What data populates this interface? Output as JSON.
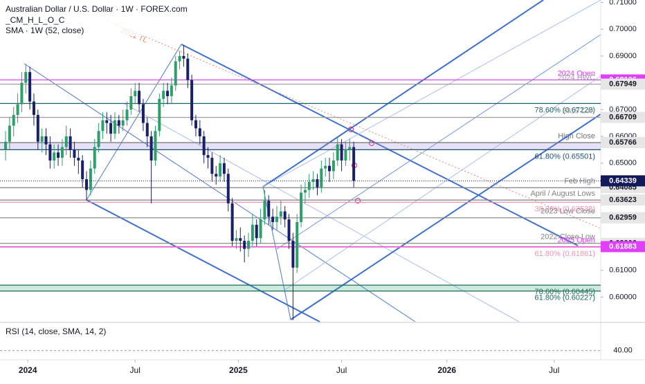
{
  "chart_data": {
    "type": "candlestick",
    "title": "Australian Dollar / U.S. Dollar · 1W · FOREX.com",
    "subtitle": "_CM_H_L_O_C",
    "indicator": "SMA · 1W (52, close)",
    "up_color": "#2e9e6b",
    "down_color": "#1a1f6b",
    "open": [
      0.655,
      0.658,
      0.664,
      0.668,
      0.672,
      0.68,
      0.684,
      0.673,
      0.668,
      0.658,
      0.66,
      0.657,
      0.651,
      0.654,
      0.652,
      0.656,
      0.66,
      0.655,
      0.652,
      0.651,
      0.644,
      0.64,
      0.648,
      0.656,
      0.662,
      0.666,
      0.665,
      0.661,
      0.666,
      0.664,
      0.666,
      0.67,
      0.675,
      0.677,
      0.672,
      0.665,
      0.66,
      0.651,
      0.662,
      0.674,
      0.677,
      0.675,
      0.679,
      0.688,
      0.69,
      0.689,
      0.681,
      0.666,
      0.663,
      0.66,
      0.653,
      0.652,
      0.646,
      0.645,
      0.65,
      0.646,
      0.635,
      0.621,
      0.622,
      0.621,
      0.618,
      0.621,
      0.627,
      0.622,
      0.629,
      0.636,
      0.63,
      0.628,
      0.63,
      0.632,
      0.629,
      0.621,
      0.611,
      0.628,
      0.639,
      0.64,
      0.643,
      0.644,
      0.641,
      0.648,
      0.649,
      0.647,
      0.651,
      0.657,
      0.651,
      0.655,
      0.656
    ],
    "high": [
      0.662,
      0.667,
      0.671,
      0.676,
      0.684,
      0.687,
      0.686,
      0.676,
      0.67,
      0.663,
      0.663,
      0.66,
      0.657,
      0.657,
      0.659,
      0.664,
      0.663,
      0.658,
      0.655,
      0.653,
      0.647,
      0.651,
      0.659,
      0.665,
      0.669,
      0.669,
      0.668,
      0.669,
      0.668,
      0.67,
      0.673,
      0.678,
      0.68,
      0.68,
      0.674,
      0.667,
      0.662,
      0.664,
      0.676,
      0.68,
      0.68,
      0.682,
      0.69,
      0.692,
      0.694,
      0.691,
      0.683,
      0.668,
      0.666,
      0.662,
      0.656,
      0.654,
      0.649,
      0.653,
      0.652,
      0.648,
      0.637,
      0.625,
      0.626,
      0.623,
      0.624,
      0.631,
      0.629,
      0.633,
      0.64,
      0.638,
      0.633,
      0.634,
      0.636,
      0.634,
      0.631,
      0.624,
      0.631,
      0.642,
      0.643,
      0.646,
      0.647,
      0.646,
      0.651,
      0.652,
      0.652,
      0.654,
      0.66,
      0.659,
      0.658,
      0.659,
      0.658
    ],
    "low": [
      0.651,
      0.655,
      0.66,
      0.665,
      0.669,
      0.676,
      0.67,
      0.664,
      0.655,
      0.654,
      0.653,
      0.648,
      0.648,
      0.649,
      0.649,
      0.653,
      0.652,
      0.649,
      0.646,
      0.641,
      0.636,
      0.638,
      0.646,
      0.654,
      0.659,
      0.661,
      0.658,
      0.659,
      0.661,
      0.662,
      0.664,
      0.668,
      0.672,
      0.669,
      0.662,
      0.656,
      0.635,
      0.649,
      0.66,
      0.671,
      0.672,
      0.672,
      0.677,
      0.685,
      0.686,
      0.678,
      0.664,
      0.66,
      0.657,
      0.65,
      0.648,
      0.643,
      0.642,
      0.643,
      0.643,
      0.632,
      0.619,
      0.618,
      0.617,
      0.613,
      0.615,
      0.619,
      0.619,
      0.62,
      0.627,
      0.627,
      0.625,
      0.625,
      0.627,
      0.626,
      0.618,
      0.5914,
      0.609,
      0.626,
      0.635,
      0.637,
      0.64,
      0.638,
      0.639,
      0.645,
      0.643,
      0.644,
      0.649,
      0.647,
      0.649,
      0.651,
      0.641
    ],
    "close": [
      0.658,
      0.664,
      0.668,
      0.672,
      0.68,
      0.684,
      0.673,
      0.668,
      0.658,
      0.66,
      0.657,
      0.651,
      0.654,
      0.652,
      0.656,
      0.66,
      0.655,
      0.652,
      0.651,
      0.644,
      0.64,
      0.648,
      0.656,
      0.662,
      0.666,
      0.665,
      0.661,
      0.666,
      0.664,
      0.666,
      0.67,
      0.675,
      0.677,
      0.672,
      0.665,
      0.66,
      0.651,
      0.662,
      0.674,
      0.677,
      0.675,
      0.679,
      0.688,
      0.69,
      0.689,
      0.681,
      0.666,
      0.663,
      0.66,
      0.653,
      0.652,
      0.646,
      0.645,
      0.65,
      0.646,
      0.635,
      0.621,
      0.622,
      0.621,
      0.618,
      0.621,
      0.627,
      0.622,
      0.629,
      0.636,
      0.63,
      0.628,
      0.63,
      0.632,
      0.629,
      0.621,
      0.611,
      0.628,
      0.639,
      0.64,
      0.643,
      0.644,
      0.641,
      0.648,
      0.649,
      0.647,
      0.651,
      0.657,
      0.651,
      0.655,
      0.656,
      0.6434
    ],
    "xlim": [
      -1.37,
      147
    ],
    "xticks": [
      {
        "value": 5.5,
        "label": "2024"
      },
      {
        "value": 32,
        "label": "Jul"
      },
      {
        "value": 57.5,
        "label": "2025"
      },
      {
        "value": 83,
        "label": "Jul"
      },
      {
        "value": 109,
        "label": "2026"
      },
      {
        "value": 135.5,
        "label": "Jul"
      }
    ],
    "ylim": [
      0.5908,
      0.7109
    ],
    "yticks": [
      {
        "value": 0.71,
        "label": "0.71000"
      },
      {
        "value": 0.7,
        "label": "0.70000"
      },
      {
        "value": 0.69,
        "label": "0.69000"
      },
      {
        "value": 0.67,
        "label": "0.67000"
      },
      {
        "value": 0.66,
        "label": "0.66000"
      },
      {
        "value": 0.65,
        "label": "0.65000"
      },
      {
        "value": 0.61,
        "label": "0.61000"
      },
      {
        "value": 0.6,
        "label": "0.60000"
      }
    ],
    "grid": false,
    "trendline_label": "2021 TL",
    "levels": [
      {
        "value": 0.68106,
        "label": "2024 Open",
        "color": "#e040fb",
        "tag": true,
        "tag_fill": "#e040fb",
        "tag_text": "#ffffff"
      },
      {
        "value": 0.67949,
        "label": "2024 HWC",
        "color": "#9e9e9e",
        "tag": true,
        "tag_fill": "#e6e6e6",
        "tag_text": "#131722"
      },
      {
        "value": 0.67228,
        "label": "78.60% (0.67228)",
        "color": "#1b5e6b",
        "tag": false
      },
      {
        "value": 0.66709,
        "label": "2019 Low",
        "color": "#9e9e9e",
        "tag": true,
        "tag_fill": "#e6e6e6",
        "tag_text": "#131722"
      },
      {
        "value": 0.65766,
        "label": "High Close",
        "color": "#707070",
        "tag": true,
        "tag_fill": "#e6e6e6",
        "tag_text": "#131722",
        "band": "rgba(170,150,230,0.28)"
      },
      {
        "value": 0.65501,
        "label": "61.80% (0.65501)",
        "color": "#1b4f6b",
        "tag": false
      },
      {
        "value": 0.64085,
        "label": "Feb High",
        "color": "#808080",
        "tag": true,
        "tag_fill": "#e6e6e6",
        "tag_text": "#131722"
      },
      {
        "value": 0.63623,
        "label": "April / August Lows",
        "color": "#808080",
        "tag": true,
        "tag_fill": "#e6e6e6",
        "tag_text": "#131722"
      },
      {
        "value": 0.63538,
        "label": "38.20% (0.63538)",
        "color": "#f48fb1",
        "tag": false
      },
      {
        "value": 0.62959,
        "label": "2023 Low Close",
        "color": "#808080",
        "tag": true,
        "tag_fill": "#e6e6e6",
        "tag_text": "#131722"
      },
      {
        "value": 0.62006,
        "label": "2022 Close Low",
        "color": "#808080",
        "tag": true,
        "tag_fill": "#e6e6e6",
        "tag_text": "#131722"
      },
      {
        "value": 0.61883,
        "label": "2025 Open",
        "color": "#e040fb",
        "tag": true,
        "tag_fill": "#e040fb",
        "tag_text": "#ffffff"
      },
      {
        "value": 0.61861,
        "label": "61.80% (0.61861)",
        "color": "#f48fb1",
        "tag": false
      },
      {
        "value": 0.60445,
        "label": "78.60% (0.60445)",
        "color": "#1b6b5b",
        "tag": false,
        "band": "rgba(60,170,120,0.25)"
      },
      {
        "value": 0.60227,
        "label": "61.80% (0.60227)",
        "color": "#1b6b5b",
        "tag": false
      }
    ],
    "current_price": {
      "value": 0.64339,
      "color": "#131a5c"
    },
    "rsi": {
      "title": "RSI (14, close, SMA, 14, 2)",
      "ylim": [
        30,
        70
      ],
      "yticks": [
        {
          "value": 40,
          "label": "40.00"
        }
      ]
    }
  }
}
